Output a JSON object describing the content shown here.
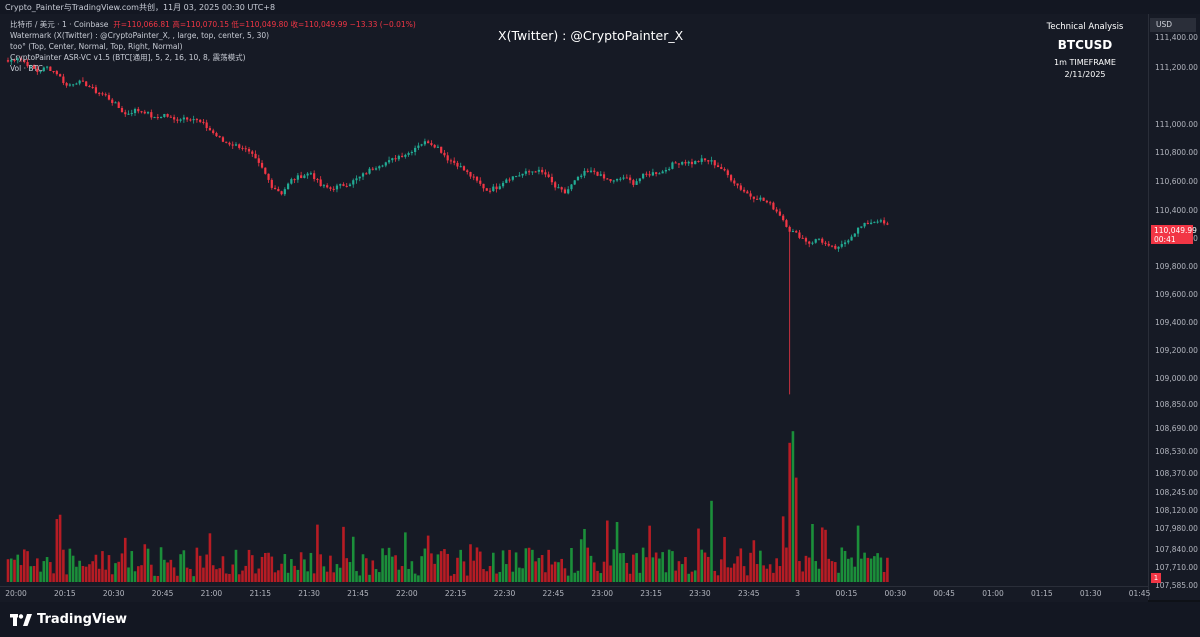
{
  "top_bar": {
    "text": "Crypto_Painter与TradingView.com共创，11月 03, 2025 00:30 UTC+8"
  },
  "legend": {
    "line1_prefix": "比特币 / 美元 · 1 · Coinbase",
    "line1_ohlc": "开=110,066.81  高=110,070.15  低=110,049.80  收=110,049.99  −13.33 (−0.01%)",
    "line2": "Watermark (X(Twitter) : @CryptoPainter_X, , large, top, center, 5, 30)",
    "line3": "too° (Top, Center, Normal, Top, Right, Normal)",
    "line4": "CryptoPainter ASR-VC v1.5 (BTC[通用], 5, 2, 16, 10, 8, 震荡模式)",
    "line5": "Vol · BTC"
  },
  "watermark": "X(Twitter) : @CryptoPainter_X",
  "info_box": {
    "label": "Technical Analysis",
    "symbol": "BTCUSD",
    "timeframe": "1m TIMEFRAME",
    "date": "2/11/2025"
  },
  "price_axis": {
    "currency": "USD",
    "ticks": [
      "111,400.00",
      "111,200.00",
      "111,000.00",
      "110,800.00",
      "110,600.00",
      "110,400.00",
      "110,200.00",
      "109,800.00",
      "109,600.00",
      "109,400.00",
      "109,200.00",
      "109,000.00",
      "108,850.00",
      "108,690.00",
      "108,530.00",
      "108,370.00",
      "108,245.00",
      "108,120.00",
      "107,980.00",
      "107,840.00",
      "107,710.00",
      "107,585.00"
    ],
    "last_price_label": "110,049.99",
    "last_price_countdown": "00:41",
    "volume_label": "1"
  },
  "time_axis": {
    "ticks": [
      "20:00",
      "20:15",
      "20:30",
      "20:45",
      "21:00",
      "21:15",
      "21:30",
      "21:45",
      "22:00",
      "22:15",
      "22:30",
      "22:45",
      "23:00",
      "23:15",
      "23:30",
      "23:45",
      "3",
      "00:15",
      "00:30",
      "00:45",
      "01:00",
      "01:15",
      "01:30",
      "01:45"
    ]
  },
  "colors": {
    "up": "#22ab94",
    "down": "#f23645",
    "background": "#161a25",
    "volume_up": "#1b8f3a",
    "volume_down": "#b71c24"
  },
  "chart_data": {
    "type": "candlestick",
    "interval": "1m",
    "symbol": "BTCUSD",
    "x_start": "20:00",
    "x_end": "00:31",
    "ylim": [
      107585,
      111500
    ],
    "close_path": [
      {
        "t": "20:00",
        "p": 111200
      },
      {
        "t": "20:03",
        "p": 111230
      },
      {
        "t": "20:06",
        "p": 111180
      },
      {
        "t": "20:09",
        "p": 111130
      },
      {
        "t": "20:12",
        "p": 111160
      },
      {
        "t": "20:15",
        "p": 111120
      },
      {
        "t": "20:18",
        "p": 111030
      },
      {
        "t": "20:21",
        "p": 111060
      },
      {
        "t": "20:24",
        "p": 111040
      },
      {
        "t": "20:27",
        "p": 110990
      },
      {
        "t": "20:30",
        "p": 110960
      },
      {
        "t": "20:33",
        "p": 110900
      },
      {
        "t": "20:36",
        "p": 110830
      },
      {
        "t": "20:39",
        "p": 110860
      },
      {
        "t": "20:42",
        "p": 110850
      },
      {
        "t": "20:45",
        "p": 110800
      },
      {
        "t": "20:48",
        "p": 110830
      },
      {
        "t": "20:51",
        "p": 110790
      },
      {
        "t": "20:54",
        "p": 110810
      },
      {
        "t": "20:57",
        "p": 110800
      },
      {
        "t": "21:00",
        "p": 110760
      },
      {
        "t": "21:03",
        "p": 110700
      },
      {
        "t": "21:06",
        "p": 110640
      },
      {
        "t": "21:09",
        "p": 110620
      },
      {
        "t": "21:12",
        "p": 110600
      },
      {
        "t": "21:15",
        "p": 110540
      },
      {
        "t": "21:18",
        "p": 110450
      },
      {
        "t": "21:21",
        "p": 110330
      },
      {
        "t": "21:24",
        "p": 110280
      },
      {
        "t": "21:27",
        "p": 110370
      },
      {
        "t": "21:30",
        "p": 110400
      },
      {
        "t": "21:33",
        "p": 110420
      },
      {
        "t": "21:36",
        "p": 110330
      },
      {
        "t": "21:39",
        "p": 110310
      },
      {
        "t": "21:42",
        "p": 110330
      },
      {
        "t": "21:45",
        "p": 110350
      },
      {
        "t": "21:48",
        "p": 110390
      },
      {
        "t": "21:51",
        "p": 110440
      },
      {
        "t": "21:54",
        "p": 110480
      },
      {
        "t": "21:57",
        "p": 110500
      },
      {
        "t": "22:00",
        "p": 110540
      },
      {
        "t": "22:03",
        "p": 110560
      },
      {
        "t": "22:06",
        "p": 110620
      },
      {
        "t": "22:09",
        "p": 110640
      },
      {
        "t": "22:12",
        "p": 110600
      },
      {
        "t": "22:15",
        "p": 110520
      },
      {
        "t": "22:18",
        "p": 110480
      },
      {
        "t": "22:21",
        "p": 110420
      },
      {
        "t": "22:24",
        "p": 110360
      },
      {
        "t": "22:27",
        "p": 110300
      },
      {
        "t": "22:30",
        "p": 110320
      },
      {
        "t": "22:33",
        "p": 110380
      },
      {
        "t": "22:36",
        "p": 110400
      },
      {
        "t": "22:39",
        "p": 110420
      },
      {
        "t": "22:42",
        "p": 110440
      },
      {
        "t": "22:45",
        "p": 110410
      },
      {
        "t": "22:48",
        "p": 110320
      },
      {
        "t": "22:51",
        "p": 110280
      },
      {
        "t": "22:54",
        "p": 110360
      },
      {
        "t": "22:57",
        "p": 110420
      },
      {
        "t": "23:00",
        "p": 110430
      },
      {
        "t": "23:03",
        "p": 110380
      },
      {
        "t": "23:06",
        "p": 110360
      },
      {
        "t": "23:09",
        "p": 110390
      },
      {
        "t": "23:12",
        "p": 110350
      },
      {
        "t": "23:15",
        "p": 110400
      },
      {
        "t": "23:18",
        "p": 110420
      },
      {
        "t": "23:21",
        "p": 110430
      },
      {
        "t": "23:24",
        "p": 110480
      },
      {
        "t": "23:27",
        "p": 110500
      },
      {
        "t": "23:30",
        "p": 110490
      },
      {
        "t": "23:33",
        "p": 110510
      },
      {
        "t": "23:36",
        "p": 110500
      },
      {
        "t": "23:39",
        "p": 110450
      },
      {
        "t": "23:42",
        "p": 110380
      },
      {
        "t": "23:45",
        "p": 110310
      },
      {
        "t": "23:48",
        "p": 110260
      },
      {
        "t": "23:51",
        "p": 110240
      },
      {
        "t": "23:54",
        "p": 110200
      },
      {
        "t": "23:57",
        "p": 110130
      },
      {
        "t": "00:00",
        "p": 110020
      },
      {
        "t": "00:03",
        "p": 109980
      },
      {
        "t": "00:06",
        "p": 109930
      },
      {
        "t": "00:09",
        "p": 109960
      },
      {
        "t": "00:12",
        "p": 109900
      },
      {
        "t": "00:15",
        "p": 109890
      },
      {
        "t": "00:18",
        "p": 109960
      },
      {
        "t": "00:21",
        "p": 110030
      },
      {
        "t": "00:24",
        "p": 110070
      },
      {
        "t": "00:27",
        "p": 110090
      },
      {
        "t": "00:30",
        "p": 110050
      }
    ],
    "flash_wick_low": {
      "t": "00:00",
      "p": 108870
    },
    "last_price": 110049.99,
    "volume": {
      "unit": "BTC",
      "typical_range": [
        1,
        6
      ],
      "spikes": [
        {
          "t": "23:36",
          "v": 14
        },
        {
          "t": "00:00",
          "v": 24
        },
        {
          "t": "00:01",
          "v": 26
        },
        {
          "t": "00:02",
          "v": 18
        },
        {
          "t": "00:07",
          "v": 10
        },
        {
          "t": "00:11",
          "v": 9
        }
      ]
    }
  }
}
